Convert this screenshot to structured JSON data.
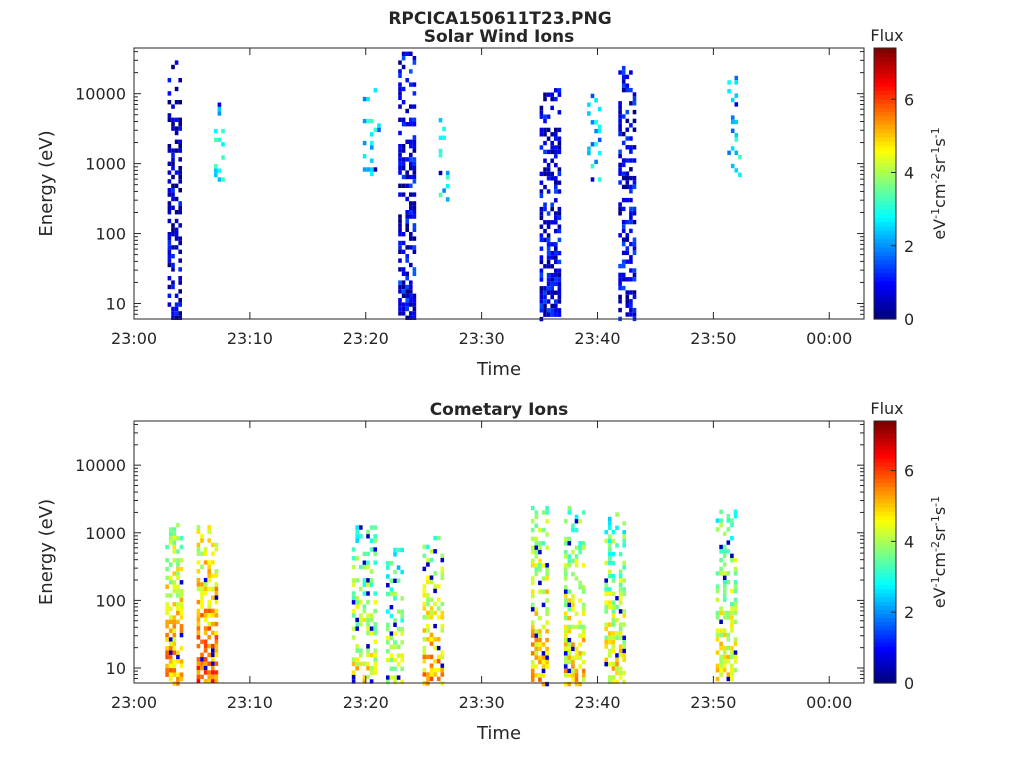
{
  "figure": {
    "title": "RPCICA150611T23.PNG"
  },
  "chart_data": [
    {
      "type": "heatmap",
      "title": "Solar Wind Ions",
      "xlabel": "Time",
      "ylabel": "Energy (eV)",
      "x_tick_labels": [
        "23:00",
        "23:10",
        "23:20",
        "23:30",
        "23:40",
        "23:50",
        "00:00"
      ],
      "xlim_minutes": [
        0,
        63
      ],
      "y_scale": "log",
      "y_tick_labels": [
        "10",
        "100",
        "1000",
        "10000"
      ],
      "ylim": [
        6,
        45000
      ],
      "colorbar": {
        "label_top": "Flux",
        "unit_label": "eV-1cm-2sr-1s-1",
        "ticks": [
          "0",
          "2",
          "4",
          "6"
        ],
        "range": [
          0,
          7.4
        ]
      },
      "bursts": [
        {
          "t": 3.5,
          "w": 1.2,
          "emin": 6,
          "emax": 40000,
          "level": 0.5,
          "density": 0.65
        },
        {
          "t": 7.3,
          "w": 0.8,
          "emin": 600,
          "emax": 10000,
          "level": 2.6,
          "density": 0.35
        },
        {
          "t": 20.5,
          "w": 1.5,
          "emin": 700,
          "emax": 12000,
          "level": 2.4,
          "density": 0.35
        },
        {
          "t": 23.5,
          "w": 1.4,
          "emin": 6,
          "emax": 40000,
          "level": 0.8,
          "density": 0.7
        },
        {
          "t": 26.7,
          "w": 0.8,
          "emin": 300,
          "emax": 6000,
          "level": 2.5,
          "density": 0.3
        },
        {
          "t": 35.8,
          "w": 1.6,
          "emin": 6,
          "emax": 12000,
          "level": 0.7,
          "density": 0.7
        },
        {
          "t": 39.7,
          "w": 1.2,
          "emin": 600,
          "emax": 10000,
          "level": 2.3,
          "density": 0.3
        },
        {
          "t": 42.5,
          "w": 1.4,
          "emin": 6,
          "emax": 25000,
          "level": 0.7,
          "density": 0.7
        },
        {
          "t": 51.8,
          "w": 1.2,
          "emin": 700,
          "emax": 18000,
          "level": 2.4,
          "density": 0.3
        }
      ]
    },
    {
      "type": "heatmap",
      "title": "Cometary Ions",
      "xlabel": "Time",
      "ylabel": "Energy (eV)",
      "x_tick_labels": [
        "23:00",
        "23:10",
        "23:20",
        "23:30",
        "23:40",
        "23:50",
        "00:00"
      ],
      "xlim_minutes": [
        0,
        63
      ],
      "y_scale": "log",
      "y_tick_labels": [
        "10",
        "100",
        "1000",
        "10000"
      ],
      "ylim": [
        6,
        45000
      ],
      "colorbar": {
        "label_top": "Flux",
        "unit_label": "eV-1cm-2sr-1s-1",
        "ticks": [
          "0",
          "2",
          "4",
          "6"
        ],
        "range": [
          0,
          7.4
        ]
      },
      "bursts": [
        {
          "t": 3.4,
          "w": 1.4,
          "emin": 6,
          "emax": 1400,
          "level": 4.6,
          "density": 0.75
        },
        {
          "t": 6.2,
          "w": 1.6,
          "emin": 6,
          "emax": 1300,
          "level": 5.0,
          "density": 0.75
        },
        {
          "t": 19.8,
          "w": 2.0,
          "emin": 6,
          "emax": 1500,
          "level": 3.9,
          "density": 0.6
        },
        {
          "t": 22.5,
          "w": 1.5,
          "emin": 6,
          "emax": 600,
          "level": 3.6,
          "density": 0.55
        },
        {
          "t": 25.8,
          "w": 1.8,
          "emin": 6,
          "emax": 900,
          "level": 4.5,
          "density": 0.65
        },
        {
          "t": 35.0,
          "w": 1.5,
          "emin": 6,
          "emax": 2500,
          "level": 4.4,
          "density": 0.7
        },
        {
          "t": 38.0,
          "w": 1.8,
          "emin": 6,
          "emax": 2500,
          "level": 4.2,
          "density": 0.65
        },
        {
          "t": 41.5,
          "w": 1.8,
          "emin": 6,
          "emax": 2000,
          "level": 4.0,
          "density": 0.65
        },
        {
          "t": 51.0,
          "w": 1.6,
          "emin": 6,
          "emax": 2200,
          "level": 4.0,
          "density": 0.6
        }
      ]
    }
  ]
}
